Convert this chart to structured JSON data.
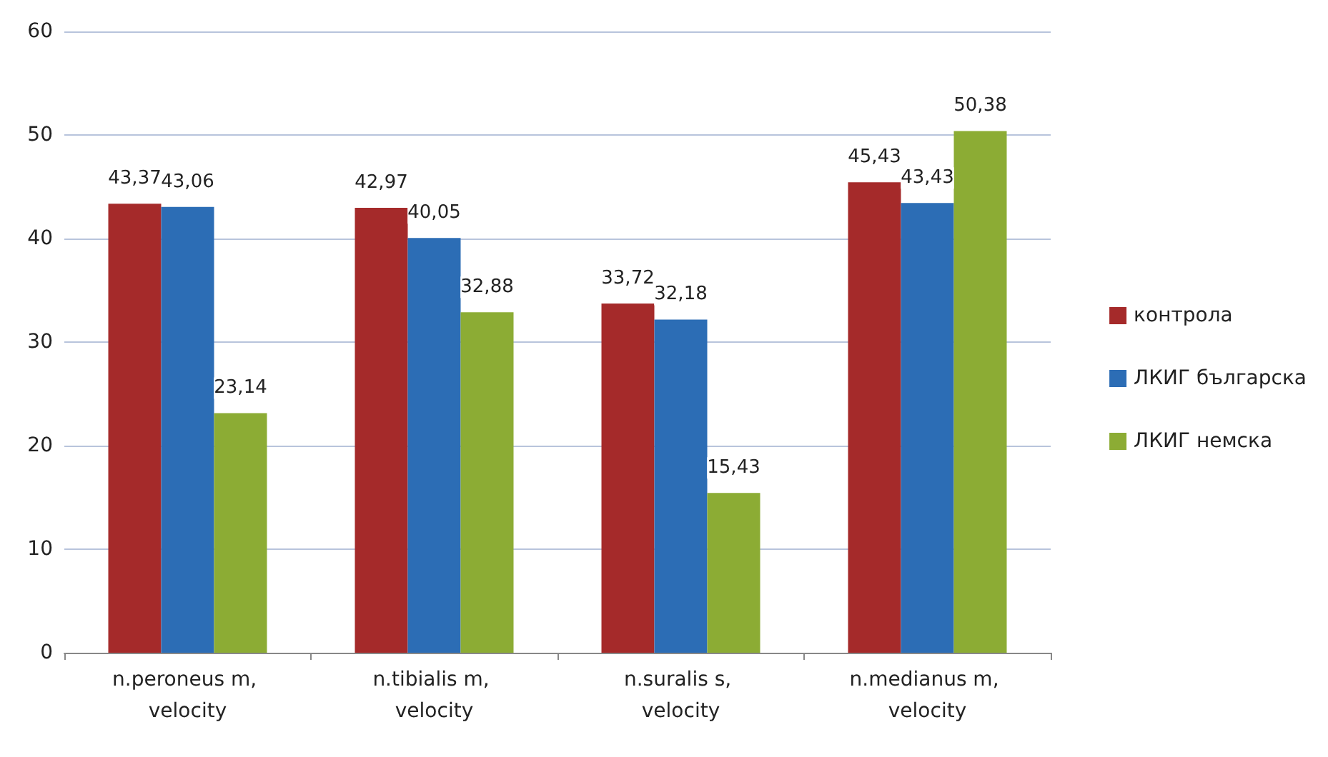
{
  "chart_data": {
    "type": "bar",
    "categories": [
      "n.peroneus m, velocity",
      "n.tibialis m, velocity",
      "n.suralis s, velocity",
      "n.medianus m, velocity"
    ],
    "series": [
      {
        "name": "контрола",
        "color": "#a52a2a",
        "values": [
          43.37,
          42.97,
          33.72,
          45.43
        ],
        "value_labels": [
          "43,37",
          "42,97",
          "33,72",
          "45,43"
        ]
      },
      {
        "name": "ЛКИГ българска",
        "color": "#2c6db5",
        "values": [
          43.06,
          40.05,
          32.18,
          43.43
        ],
        "value_labels": [
          "43,06",
          "40,05",
          "32,18",
          "43,43"
        ]
      },
      {
        "name": "ЛКИГ немска",
        "color": "#8cac34",
        "values": [
          23.14,
          32.88,
          15.43,
          50.38
        ],
        "value_labels": [
          "23,14",
          "32,88",
          "15,43",
          "50,38"
        ]
      }
    ],
    "ylim": [
      0,
      60
    ],
    "yticks": [
      0,
      10,
      20,
      30,
      40,
      50,
      60
    ],
    "grid": "y",
    "legend": "right"
  }
}
